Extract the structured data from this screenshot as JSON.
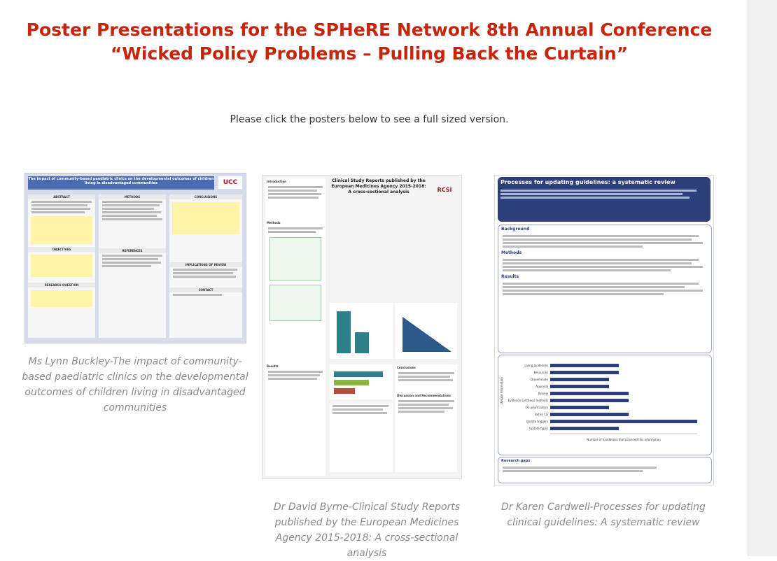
{
  "page": {
    "title_line1": "Poster Presentations for the SPHeRE Network 8th Annual Conference",
    "title_line2": "“Wicked Policy Problems – Pulling Back the Curtain”",
    "instruction": "Please click the posters below to see a full sized version."
  },
  "posters": [
    {
      "caption": "Ms Lynn Buckley-The impact of community-based paediatric clinics on the developmental outcomes of children living in disadvantaged communities",
      "header": "The impact of community-based paediatric clinics on the developmental outcomes of children living in disadvantaged communities",
      "logo": "UCC",
      "sections": [
        "ABSTRACT",
        "METHODS",
        "CONCLUSIONS",
        "OBJECTIVES",
        "REFERENCES",
        "RESEARCH QUESTION",
        "IMPLICATIONS OF REVIEW",
        "CONTACT"
      ]
    },
    {
      "caption": "Dr David Byrne-Clinical Study Reports published by the European Medicines Agency 2015-2018: A cross-sectional analysis",
      "header": "Clinical Study Reports published by the European Medicines Agency 2015-2018: A cross-sectional analysis",
      "logo": "RCSI",
      "sections": [
        "Introduction",
        "Methods",
        "Results",
        "Conclusions",
        "Discussion and Recommendations"
      ]
    },
    {
      "caption": "Dr Karen Cardwell-Processes for updating clinical guidelines: A systematic review",
      "header": "Processes for updating guidelines: a systematic review",
      "sections": [
        "Background",
        "Methods",
        "Results",
        "Research gaps"
      ],
      "chart_labels": [
        "Living guidelines",
        "Resources",
        "Disseminate",
        "Approval",
        "Review",
        "Evidence synthesis methods",
        "CG prioritisation",
        "Retire CG",
        "Update triggers",
        "Update types"
      ],
      "chart_values": [
        7,
        7,
        6,
        6,
        8,
        8,
        6,
        8,
        15,
        7
      ],
      "axis_title": "Number of handbooks that provided this information",
      "y_title": "Update information"
    }
  ],
  "colors": {
    "title": "#c4250c",
    "caption": "#8a8a8a",
    "poster3_header": "#2d3f7a"
  }
}
